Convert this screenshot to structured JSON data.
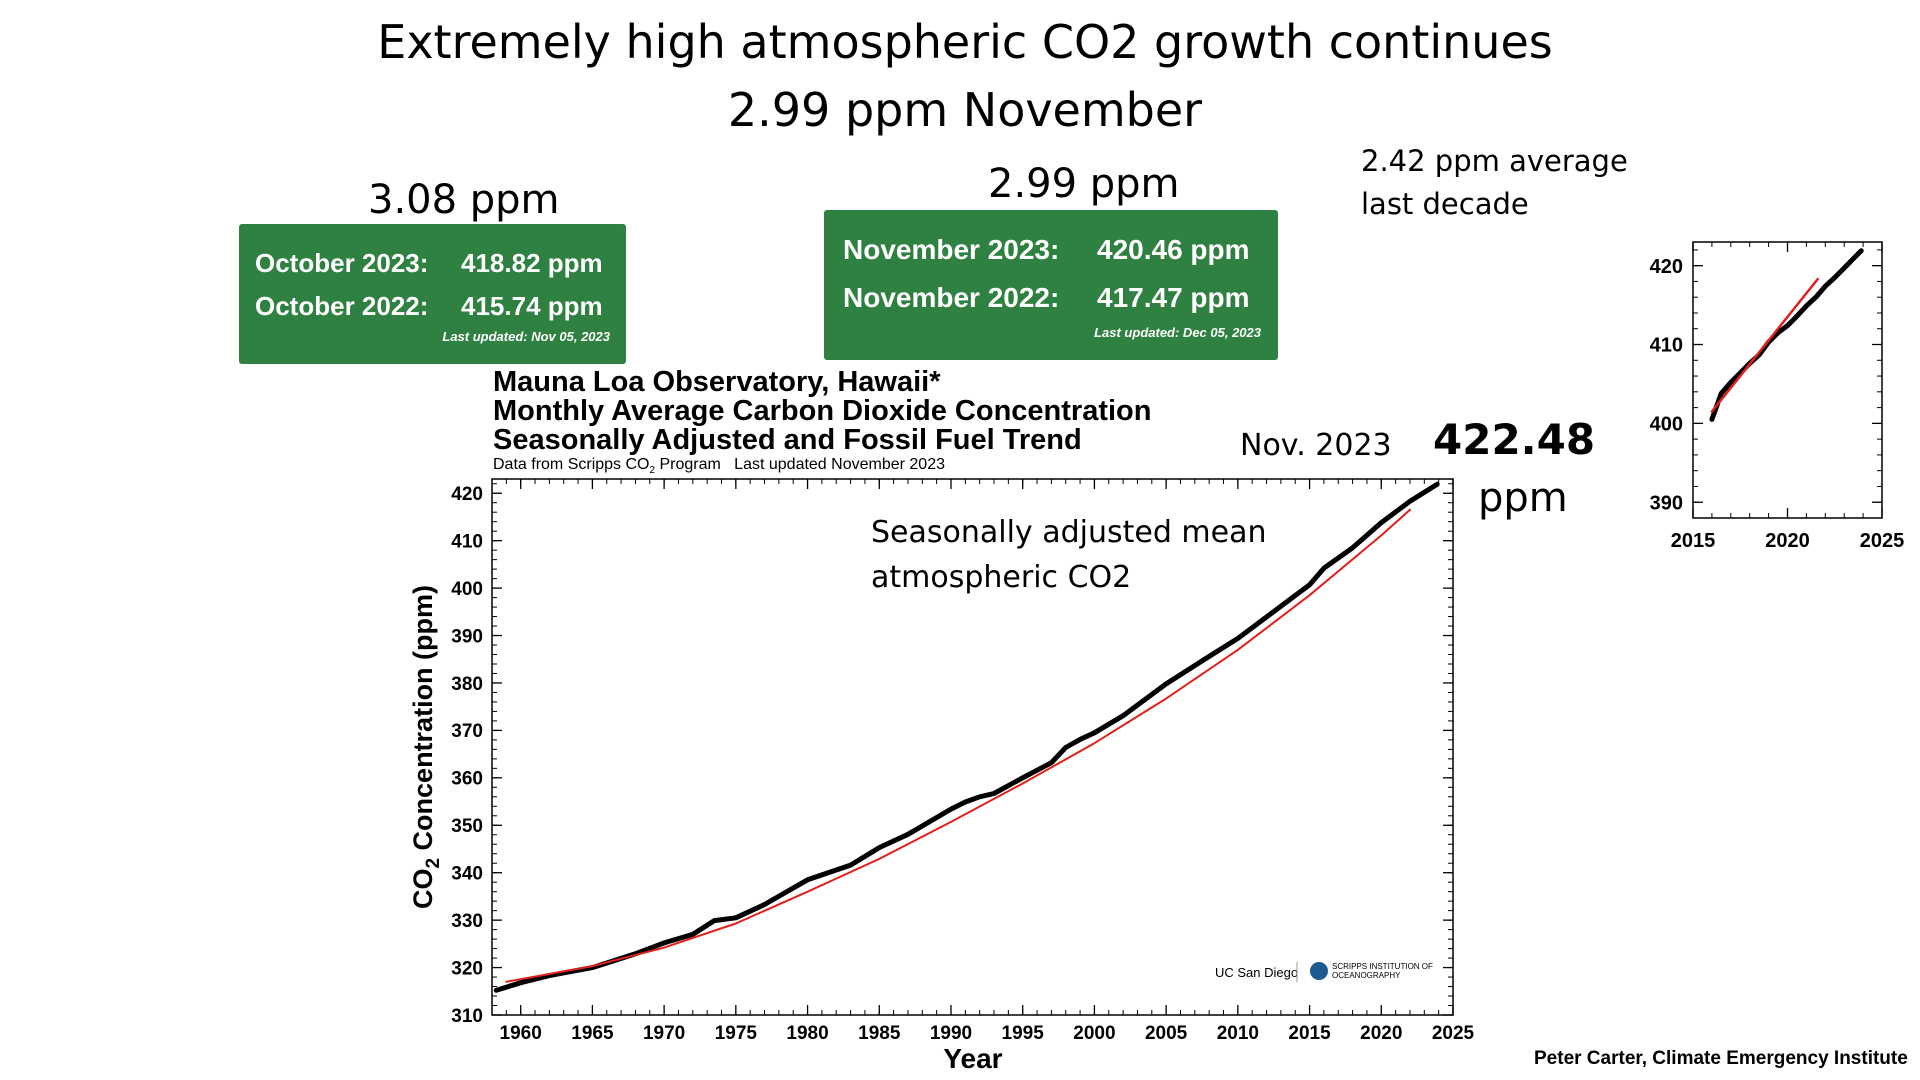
{
  "slide": {
    "title_line1": "Extremely high atmospheric CO2 growth continues",
    "title_line2": "2.99 ppm November",
    "october_change": "3.08 ppm",
    "november_change": "2.99 ppm",
    "decade_avg_line1": "2.42 ppm average",
    "decade_avg_line2": "last decade",
    "latest_month": "Nov. 2023",
    "latest_value": "422.48",
    "latest_unit": "ppm",
    "annotation_line1": "Seasonally adjusted mean",
    "annotation_line2": "atmospheric CO2",
    "credit": "Peter Carter, Climate Emergency Institute"
  },
  "colors": {
    "panel_green": "#2e8140",
    "trend_red": "#e0201b",
    "data_black": "#000000"
  },
  "panels": [
    {
      "row1_label": "October 2023:",
      "row1_value": "418.82 ppm",
      "row2_label": "October 2022:",
      "row2_value": "415.74 ppm",
      "updated": "Last updated: Nov 05, 2023"
    },
    {
      "row1_label": "November 2023:",
      "row1_value": "420.46 ppm",
      "row2_label": "November 2022:",
      "row2_value": "417.47 ppm",
      "updated": "Last updated: Dec 05, 2023"
    }
  ],
  "chart_header": {
    "line1": "Mauna Loa Observatory, Hawaii*",
    "line2": "Monthly Average Carbon Dioxide Concentration",
    "line3": "Seasonally Adjusted and Fossil Fuel Trend",
    "source_prefix": "Data from Scripps CO",
    "source_sub": "2",
    "source_suffix": " Program   Last updated November 2023"
  },
  "logos": {
    "ucsd": "UC San Diego",
    "scripps_line1": "SCRIPPS INSTITUTION OF",
    "scripps_line2": "OCEANOGRAPHY"
  },
  "chart_data": [
    {
      "type": "line",
      "xlabel": "Year",
      "ylabel_prefix": "CO",
      "ylabel_sub": "2",
      "ylabel_suffix": " Concentration (ppm)",
      "xlim": [
        1958,
        2025
      ],
      "ylim": [
        310,
        423
      ],
      "xticks": [
        1960,
        1965,
        1970,
        1975,
        1980,
        1985,
        1990,
        1995,
        2000,
        2005,
        2010,
        2015,
        2020,
        2025
      ],
      "yticks": [
        310,
        320,
        330,
        340,
        350,
        360,
        370,
        380,
        390,
        400,
        410,
        420
      ],
      "series": [
        {
          "role": "seasonally adjusted mean",
          "color": "#000000",
          "x": [
            1958.3,
            1960,
            1962,
            1965,
            1968,
            1970,
            1972,
            1973.5,
            1975,
            1977,
            1980,
            1983,
            1985,
            1987,
            1990,
            1991,
            1992,
            1993,
            1995,
            1997,
            1998,
            1999,
            2000,
            2002,
            2005,
            2008,
            2010,
            2012,
            2015,
            2016,
            2018,
            2020,
            2022,
            2023.9
          ],
          "y": [
            315.2,
            316.8,
            318.3,
            320.0,
            322.9,
            325.2,
            327.0,
            329.9,
            330.5,
            333.3,
            338.5,
            341.6,
            345.3,
            348.1,
            353.4,
            354.9,
            356.0,
            356.7,
            360.0,
            363.2,
            366.4,
            368.1,
            369.5,
            373.1,
            379.8,
            385.6,
            389.4,
            393.9,
            400.7,
            404.2,
            408.5,
            413.8,
            418.3,
            421.9
          ]
        },
        {
          "role": "fossil fuel trend",
          "color": "#e0201b",
          "x": [
            1959,
            1965,
            1970,
            1975,
            1980,
            1985,
            1990,
            1995,
            2000,
            2005,
            2010,
            2015,
            2020,
            2022
          ],
          "y": [
            317.0,
            320.3,
            324.2,
            329.3,
            336.0,
            342.9,
            350.7,
            358.8,
            367.3,
            376.7,
            387.0,
            398.5,
            411.1,
            416.5
          ]
        }
      ]
    },
    {
      "type": "line",
      "xlim": [
        2015,
        2025
      ],
      "ylim": [
        388,
        423
      ],
      "xticks": [
        2015,
        2020,
        2025
      ],
      "yticks": [
        390,
        400,
        410,
        420
      ],
      "series": [
        {
          "role": "seasonally adjusted mean",
          "color": "#000000",
          "x": [
            2016.0,
            2016.5,
            2017,
            2017.5,
            2018,
            2018.5,
            2019,
            2019.5,
            2020,
            2020.5,
            2021,
            2021.5,
            2022,
            2022.5,
            2023,
            2023.9
          ],
          "y": [
            400.5,
            403.8,
            405.2,
            406.4,
            407.6,
            408.7,
            410.3,
            411.5,
            412.4,
            413.6,
            414.9,
            416.0,
            417.4,
            418.5,
            419.7,
            421.9
          ]
        },
        {
          "role": "fossil fuel trend",
          "color": "#e0201b",
          "x": [
            2016.0,
            2021.6
          ],
          "y": [
            401.5,
            418.3
          ]
        }
      ]
    }
  ]
}
